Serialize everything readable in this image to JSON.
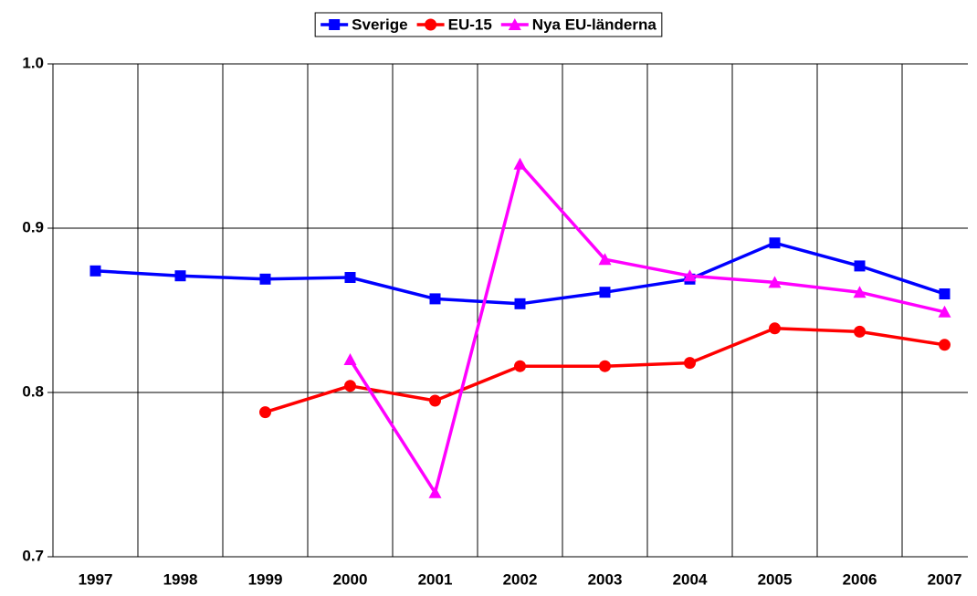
{
  "chart_data": {
    "type": "line",
    "categories": [
      "1997",
      "1998",
      "1999",
      "2000",
      "2001",
      "2002",
      "2003",
      "2004",
      "2005",
      "2006",
      "2007"
    ],
    "series": [
      {
        "name": "Sverige",
        "color": "#0000ff",
        "marker": "square",
        "values": [
          0.874,
          0.871,
          0.869,
          0.87,
          0.857,
          0.854,
          0.861,
          0.869,
          0.891,
          0.877,
          0.86
        ]
      },
      {
        "name": "EU-15",
        "color": "#ff0000",
        "marker": "circle",
        "values": [
          null,
          null,
          0.788,
          0.804,
          0.795,
          0.816,
          0.816,
          0.818,
          0.839,
          0.837,
          0.829
        ]
      },
      {
        "name": "Nya EU-länderna",
        "color": "#ff00ff",
        "marker": "triangle",
        "values": [
          null,
          null,
          null,
          0.82,
          0.739,
          0.939,
          0.881,
          0.871,
          0.867,
          0.861,
          0.849
        ]
      }
    ],
    "ylim": [
      0.7,
      1.0
    ],
    "yticks": [
      0.7,
      0.8,
      0.9,
      {
        "value": 1,
        "label": "1.0"
      }
    ],
    "grid": true,
    "legend": "top"
  }
}
